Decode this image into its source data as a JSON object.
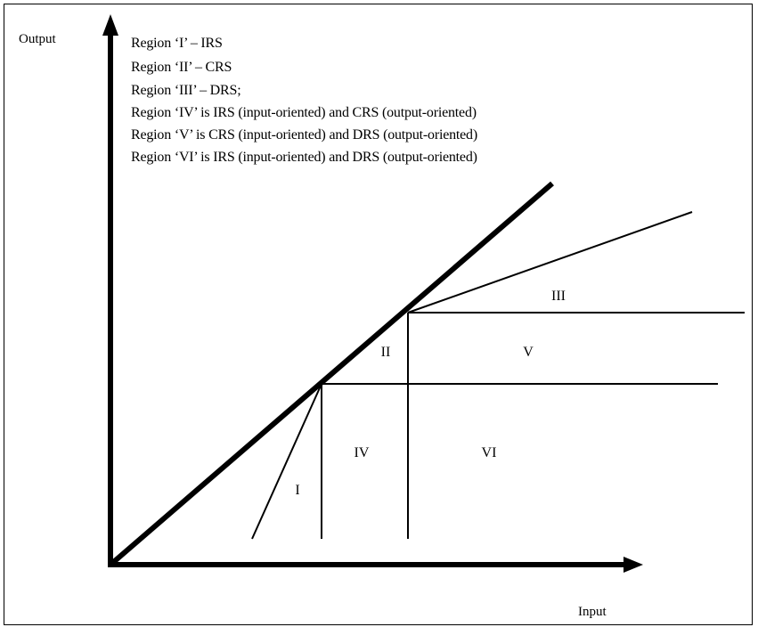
{
  "axes": {
    "y_label": "Output",
    "x_label": "Input"
  },
  "legend": [
    "Region ‘I’ – IRS",
    "Region ‘II’ – CRS",
    "Region ‘III’ – DRS;",
    "Region ‘IV’ is IRS (input-oriented) and CRS (output-oriented)",
    "Region ‘V’ is CRS (input-oriented) and DRS (output-oriented)",
    "Region ‘VI’ is IRS (input-oriented) and DRS (output-oriented)"
  ],
  "regions": {
    "I": "I",
    "II": "II",
    "III": "III",
    "IV": "IV",
    "V": "V",
    "VI": "VI"
  },
  "colors": {
    "line": "#000000",
    "background": "#ffffff"
  }
}
